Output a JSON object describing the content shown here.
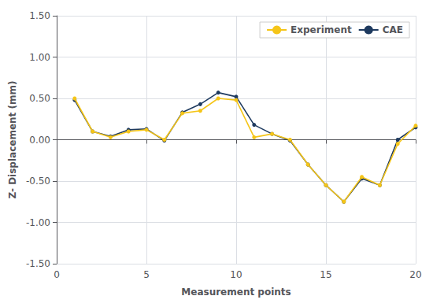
{
  "chart_data": {
    "type": "line",
    "xlabel": "Measurement points",
    "ylabel": "Z- Displacement (mm)",
    "x": [
      1,
      2,
      3,
      4,
      5,
      6,
      7,
      8,
      9,
      10,
      11,
      12,
      13,
      14,
      15,
      16,
      17,
      18,
      19,
      20
    ],
    "series": [
      {
        "name": "Experiment",
        "color": "#f5c518",
        "values": [
          0.5,
          0.1,
          0.03,
          0.1,
          0.12,
          0.0,
          0.32,
          0.35,
          0.5,
          0.48,
          0.03,
          0.07,
          0.0,
          -0.3,
          -0.55,
          -0.75,
          -0.45,
          -0.55,
          -0.05,
          0.17
        ]
      },
      {
        "name": "CAE",
        "color": "#1e3a5f",
        "values": [
          0.48,
          0.1,
          0.04,
          0.12,
          0.13,
          -0.01,
          0.33,
          0.43,
          0.57,
          0.52,
          0.18,
          0.07,
          -0.01,
          -0.3,
          -0.55,
          -0.75,
          -0.47,
          -0.55,
          0.0,
          0.15
        ]
      }
    ],
    "xlim": [
      0,
      20
    ],
    "xticks": [
      0,
      5,
      10,
      15,
      20
    ],
    "ylim": [
      -1.5,
      1.5
    ],
    "yticks": [
      {
        "value": -1.5,
        "label": "-1.50"
      },
      {
        "value": -1.0,
        "label": "-1.00"
      },
      {
        "value": -0.5,
        "label": "-0.50"
      },
      {
        "value": 0.0,
        "label": "0.00"
      },
      {
        "value": 0.5,
        "label": "0.50"
      },
      {
        "value": 1.0,
        "label": "1.00"
      },
      {
        "value": 1.5,
        "label": "1.50"
      }
    ],
    "grid": true,
    "legend": "upper right",
    "marker": "circle"
  }
}
